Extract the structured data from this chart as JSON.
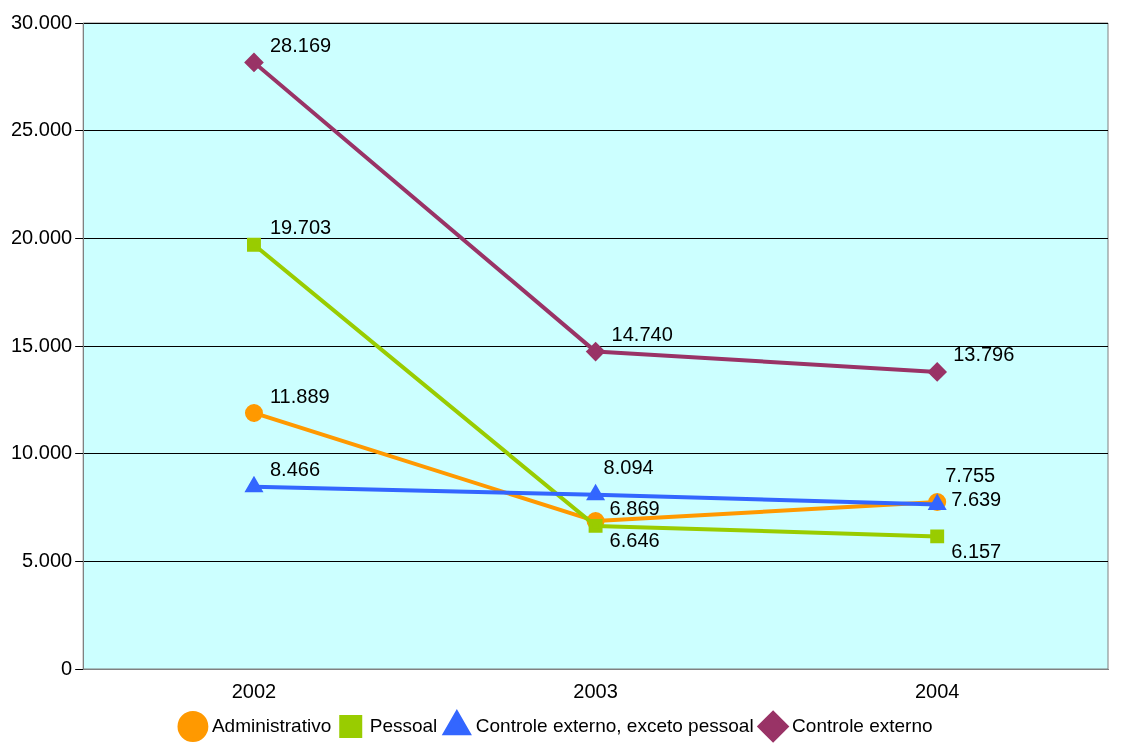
{
  "chart_data": {
    "type": "line",
    "categories": [
      "2002",
      "2003",
      "2004"
    ],
    "series": [
      {
        "name": "Administrativo",
        "color": "#ff9900",
        "marker": "circle",
        "values": [
          11889,
          6869,
          7755
        ],
        "value_labels": [
          "11.889",
          "6.869",
          "7.755"
        ]
      },
      {
        "name": "Pessoal",
        "color": "#99cc00",
        "marker": "square",
        "values": [
          19703,
          6646,
          6157
        ],
        "value_labels": [
          "19.703",
          "6.646",
          "6.157"
        ]
      },
      {
        "name": "Controle externo, exceto pessoal",
        "color": "#3366ff",
        "marker": "triangle",
        "values": [
          8466,
          8094,
          7639
        ],
        "value_labels": [
          "8.466",
          "8.094",
          "7.639"
        ]
      },
      {
        "name": "Controle externo",
        "color": "#993366",
        "marker": "diamond",
        "values": [
          28169,
          14740,
          13796
        ],
        "value_labels": [
          "28.169",
          "14.740",
          "13.796"
        ]
      }
    ],
    "ylim": [
      0,
      30000
    ],
    "yticks": [
      {
        "value": 0,
        "label": "0"
      },
      {
        "value": 5000,
        "label": "5.000"
      },
      {
        "value": 10000,
        "label": "10.000"
      },
      {
        "value": 15000,
        "label": "15.000"
      },
      {
        "value": 20000,
        "label": "20.000"
      },
      {
        "value": 25000,
        "label": "25.000"
      },
      {
        "value": 30000,
        "label": "30.000"
      }
    ],
    "grid": "y",
    "legend": "bottom"
  }
}
